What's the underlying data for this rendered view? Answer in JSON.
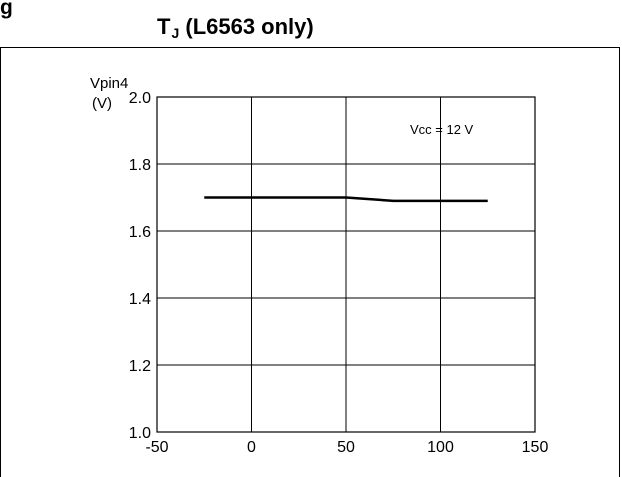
{
  "figure": {
    "prefix": "g",
    "title_main": "T",
    "title_sub": "J",
    "title_rest": " (L6563 only)"
  },
  "chart_data": {
    "type": "line",
    "ylabel_line1": "Vpin4",
    "ylabel_line2": "(V)",
    "xlim": [
      -50,
      150
    ],
    "ylim": [
      1.0,
      2.0
    ],
    "xticks": [
      "-50",
      "0",
      "50",
      "100",
      "150"
    ],
    "xtick_values": [
      -50,
      0,
      50,
      100,
      150
    ],
    "yticks": [
      "1.0",
      "1.2",
      "1.4",
      "1.6",
      "1.8",
      "2.0"
    ],
    "ytick_values": [
      1.0,
      1.2,
      1.4,
      1.6,
      1.8,
      2.0
    ],
    "grid": true,
    "annotation": "Vcc = 12 V",
    "series": [
      {
        "x": [
          -25,
          0,
          25,
          50,
          75,
          100,
          125
        ],
        "y": [
          1.7,
          1.7,
          1.7,
          1.7,
          1.69,
          1.69,
          1.69
        ]
      }
    ],
    "line_color": "#000000"
  }
}
